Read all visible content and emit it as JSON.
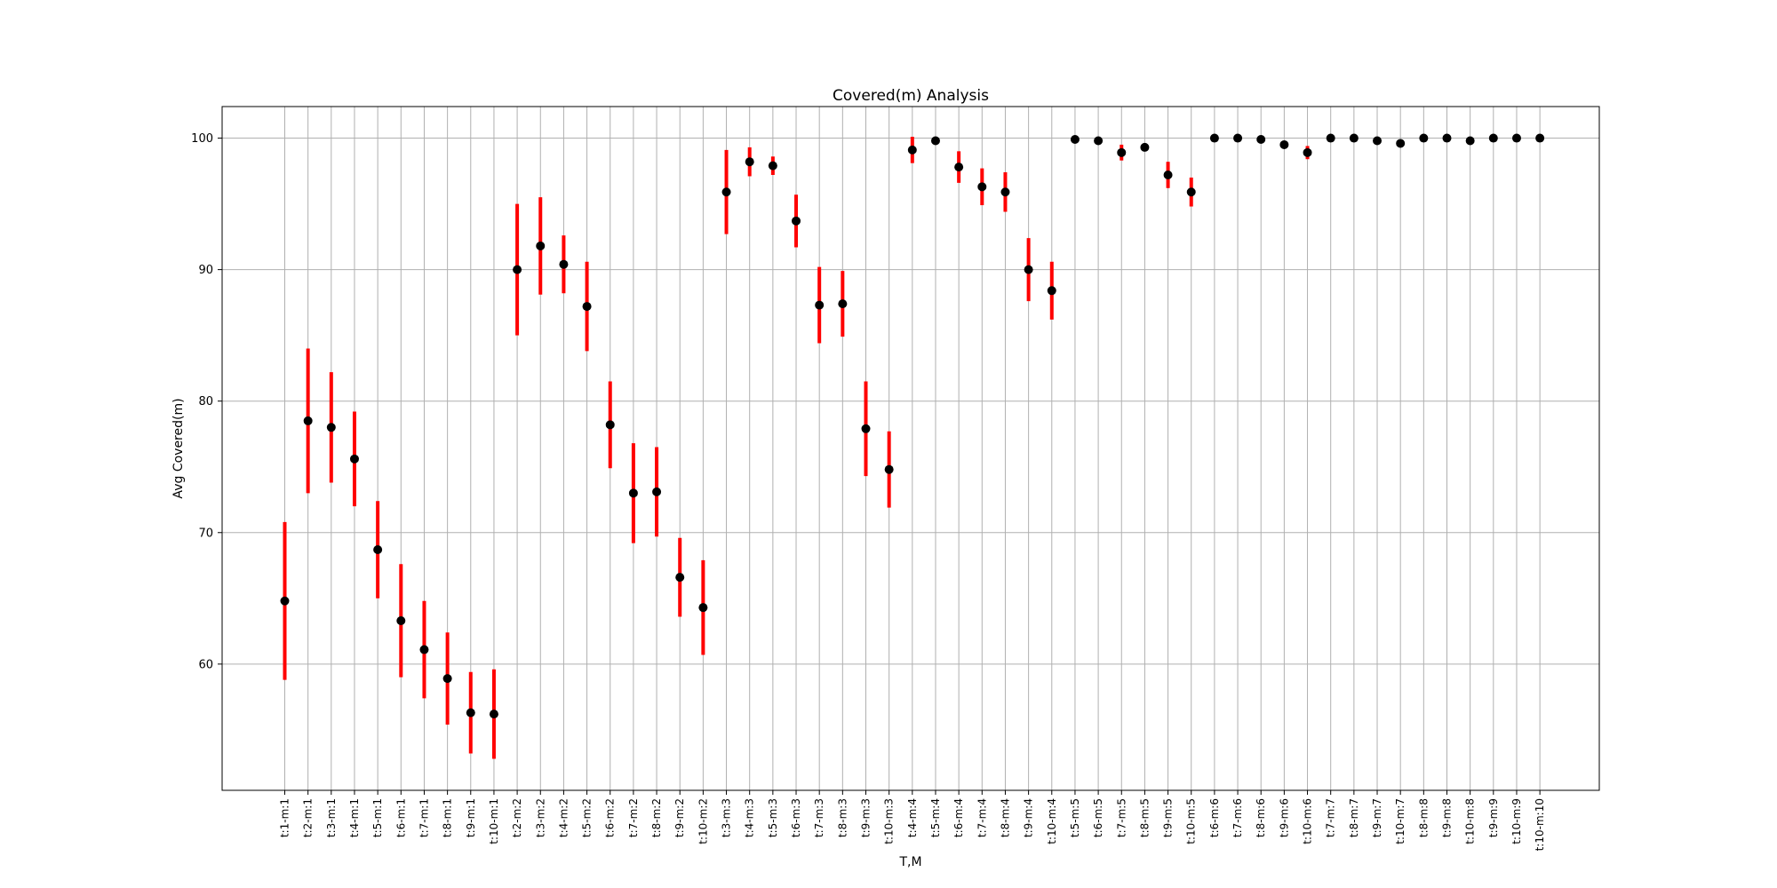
{
  "chart_data": {
    "type": "scatter",
    "title": "Covered(m) Analysis",
    "xlabel": "T,M",
    "ylabel": "Avg Covered(m)",
    "ylim": [
      50.4,
      102.4
    ],
    "yticks": [
      60,
      70,
      80,
      90,
      100
    ],
    "grid": true,
    "marker_color": "#000000",
    "errorbar_color": "#ff0000",
    "categories": [
      "t:1-m:1",
      "t:2-m:1",
      "t:3-m:1",
      "t:4-m:1",
      "t:5-m:1",
      "t:6-m:1",
      "t:7-m:1",
      "t:8-m:1",
      "t:9-m:1",
      "t:10-m:1",
      "t:2-m:2",
      "t:3-m:2",
      "t:4-m:2",
      "t:5-m:2",
      "t:6-m:2",
      "t:7-m:2",
      "t:8-m:2",
      "t:9-m:2",
      "t:10-m:2",
      "t:3-m:3",
      "t:4-m:3",
      "t:5-m:3",
      "t:6-m:3",
      "t:7-m:3",
      "t:8-m:3",
      "t:9-m:3",
      "t:10-m:3",
      "t:4-m:4",
      "t:5-m:4",
      "t:6-m:4",
      "t:7-m:4",
      "t:8-m:4",
      "t:9-m:4",
      "t:10-m:4",
      "t:5-m:5",
      "t:6-m:5",
      "t:7-m:5",
      "t:8-m:5",
      "t:9-m:5",
      "t:10-m:5",
      "t:6-m:6",
      "t:7-m:6",
      "t:8-m:6",
      "t:9-m:6",
      "t:10-m:6",
      "t:7-m:7",
      "t:8-m:7",
      "t:9-m:7",
      "t:10-m:7",
      "t:8-m:8",
      "t:9-m:8",
      "t:10-m:8",
      "t:9-m:9",
      "t:10-m:9",
      "t:10-m:10"
    ],
    "values": [
      64.8,
      78.5,
      78.0,
      75.6,
      68.7,
      63.3,
      61.1,
      58.9,
      56.3,
      56.2,
      90.0,
      91.8,
      90.4,
      87.2,
      78.2,
      73.0,
      73.1,
      66.6,
      64.3,
      95.9,
      98.2,
      97.9,
      93.7,
      87.3,
      87.4,
      77.9,
      74.8,
      99.1,
      99.8,
      97.8,
      96.3,
      95.9,
      90.0,
      88.4,
      99.9,
      99.8,
      98.9,
      99.3,
      97.2,
      95.9,
      100.0,
      100.0,
      99.9,
      99.5,
      98.9,
      100.0,
      100.0,
      99.8,
      99.6,
      100.0,
      100.0,
      99.8,
      100.0,
      100.0,
      100.0
    ],
    "errors": [
      6.0,
      5.5,
      4.2,
      3.6,
      3.7,
      4.3,
      3.7,
      3.5,
      3.1,
      3.4,
      5.0,
      3.7,
      2.2,
      3.4,
      3.3,
      3.8,
      3.4,
      3.0,
      3.6,
      3.2,
      1.1,
      0.7,
      2.0,
      2.9,
      2.5,
      3.6,
      2.9,
      1.0,
      0.0,
      1.2,
      1.4,
      1.5,
      2.4,
      2.2,
      0.0,
      0.0,
      0.6,
      0.3,
      1.0,
      1.1,
      0.0,
      0.0,
      0.0,
      0.0,
      0.5,
      0.0,
      0.0,
      0.0,
      0.2,
      0.0,
      0.0,
      0.0,
      0.0,
      0.0,
      0.0
    ]
  }
}
